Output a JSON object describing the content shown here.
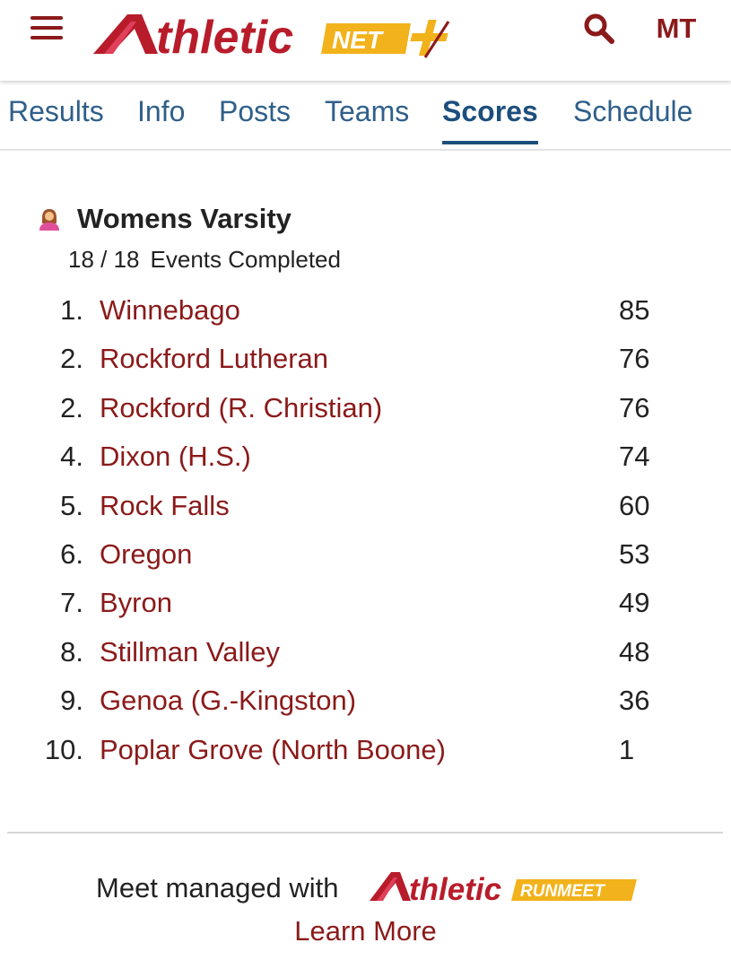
{
  "header": {
    "logo_text": "thletic",
    "logo_badge": "NET",
    "user_initials": "MT"
  },
  "tabs": [
    {
      "label": "Results"
    },
    {
      "label": "Info"
    },
    {
      "label": "Posts"
    },
    {
      "label": "Teams"
    },
    {
      "label": "Scores",
      "active": true
    },
    {
      "label": "Schedule"
    }
  ],
  "section": {
    "title": "Womens Varsity",
    "events_completed": "18 / 18",
    "events_label": "Events Completed"
  },
  "standings": [
    {
      "rank": "1.",
      "team": "Winnebago",
      "score": "85"
    },
    {
      "rank": "2.",
      "team": "Rockford Lutheran",
      "score": "76"
    },
    {
      "rank": "2.",
      "team": "Rockford (R. Christian)",
      "score": "76"
    },
    {
      "rank": "4.",
      "team": "Dixon (H.S.)",
      "score": "74"
    },
    {
      "rank": "5.",
      "team": "Rock Falls",
      "score": "60"
    },
    {
      "rank": "6.",
      "team": "Oregon",
      "score": "53"
    },
    {
      "rank": "7.",
      "team": "Byron",
      "score": "49"
    },
    {
      "rank": "8.",
      "team": "Stillman Valley",
      "score": "48"
    },
    {
      "rank": "9.",
      "team": "Genoa (G.-Kingston)",
      "score": "36"
    },
    {
      "rank": "10.",
      "team": "Poplar Grove (North Boone)",
      "score": "1"
    }
  ],
  "footer": {
    "managed_text": "Meet managed with",
    "logo_text": "thletic",
    "logo_badge": "RUNMEET",
    "learn_more": "Learn More"
  },
  "colors": {
    "brand_red": "#8b1a1a",
    "logo_red": "#b81c2b",
    "logo_yellow": "#f2b21b",
    "tab_blue": "#2f5f8a",
    "active_tab_blue": "#1d4f7c"
  },
  "icons": {
    "menu": "hamburger-menu-icon",
    "search": "search-icon",
    "team": "female-athlete-icon",
    "plus": "plus-icon"
  }
}
